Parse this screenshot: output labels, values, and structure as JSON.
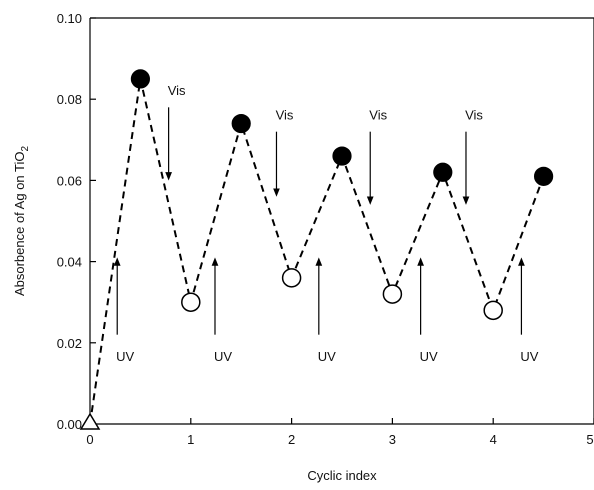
{
  "chart_data": {
    "type": "line",
    "title": "",
    "xlabel": "Cyclic index",
    "ylabel_main": "Absorbence of Ag on TiO",
    "ylabel_sub": "2",
    "xlim": [
      0,
      5
    ],
    "ylim": [
      0,
      0.1
    ],
    "x_ticks": [
      "0",
      "1",
      "2",
      "3",
      "4",
      "5"
    ],
    "y_ticks": [
      "0.00",
      "0.02",
      "0.04",
      "0.06",
      "0.08",
      "0.10"
    ],
    "grid": false,
    "colors": {
      "line": "#000000",
      "filled_marker": "#000000",
      "open_marker": "#ffffff"
    },
    "series": [
      {
        "x": [
          0,
          0.5,
          1.0,
          1.5,
          2.0,
          2.5,
          3.0,
          3.5,
          4.0,
          4.5
        ],
        "y": [
          0.0,
          0.085,
          0.03,
          0.074,
          0.036,
          0.066,
          0.032,
          0.062,
          0.028,
          0.061
        ],
        "markers": [
          "triangle-open",
          "circle-filled",
          "circle-open",
          "circle-filled",
          "circle-open",
          "circle-filled",
          "circle-open",
          "circle-filled",
          "circle-open",
          "circle-filled"
        ]
      }
    ],
    "annotations": [
      {
        "text": "UV",
        "x": 0.27,
        "arrow_from": 0.022,
        "arrow_to": 0.04,
        "label_y": 0.019,
        "direction": "up"
      },
      {
        "text": "UV",
        "x": 1.24,
        "arrow_from": 0.022,
        "arrow_to": 0.04,
        "label_y": 0.019,
        "direction": "up"
      },
      {
        "text": "UV",
        "x": 2.27,
        "arrow_from": 0.022,
        "arrow_to": 0.04,
        "label_y": 0.019,
        "direction": "up"
      },
      {
        "text": "UV",
        "x": 3.28,
        "arrow_from": 0.022,
        "arrow_to": 0.04,
        "label_y": 0.019,
        "direction": "up"
      },
      {
        "text": "UV",
        "x": 4.28,
        "arrow_from": 0.022,
        "arrow_to": 0.04,
        "label_y": 0.019,
        "direction": "up"
      },
      {
        "text": "Vis",
        "x": 0.78,
        "arrow_from": 0.078,
        "arrow_to": 0.061,
        "label_y": 0.081,
        "direction": "down"
      },
      {
        "text": "Vis",
        "x": 1.85,
        "arrow_from": 0.072,
        "arrow_to": 0.057,
        "label_y": 0.075,
        "direction": "down"
      },
      {
        "text": "Vis",
        "x": 2.78,
        "arrow_from": 0.072,
        "arrow_to": 0.055,
        "label_y": 0.075,
        "direction": "down"
      },
      {
        "text": "Vis",
        "x": 3.73,
        "arrow_from": 0.072,
        "arrow_to": 0.055,
        "label_y": 0.075,
        "direction": "down"
      }
    ]
  }
}
